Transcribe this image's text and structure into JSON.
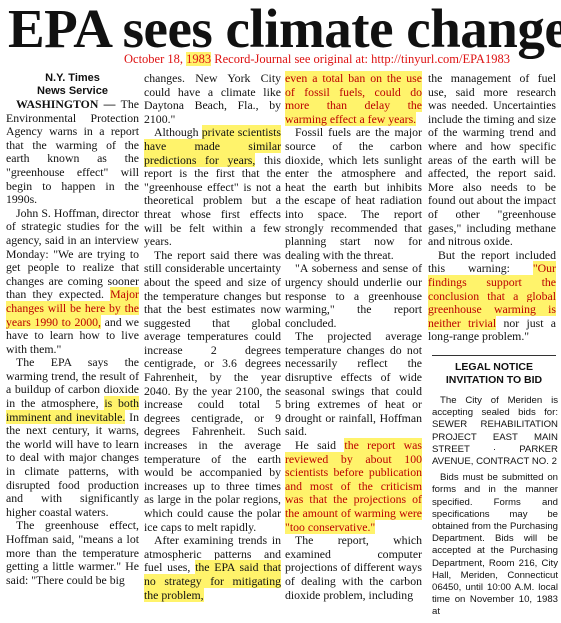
{
  "headline": "EPA sees climate change",
  "caption": {
    "date_prefix": "October 18, ",
    "year": "1983",
    "source": "  Record-Journal    see original at: http://tinyurl.com/EPA1983"
  },
  "byline": [
    "N.Y. Times",
    "News Service"
  ],
  "col1": {
    "dateline": "WASHINGTON — ",
    "p1": "The Environmental Protection Agency warns in a report that the warming of the earth known as the \"greenhouse effect\" will begin to happen in the 1990s.",
    "p2a": "John S. Hoffman, director of strategic studies for the agency, said in an interview Monday: \"We are trying to get people to realize that changes are coming sooner than they expected. ",
    "p2_hl": "Major changes will be here by the years 1990 to 2000,",
    "p2b": " and we have to learn how to live with them.\"",
    "p3a": "The EPA says the warming trend, the result of a buildup of carbon dioxide in the atmosphere, ",
    "p3_hl": "is both imminent and inevitable.",
    "p3b": " In the next century, it warns, the world will have to learn to deal with major changes in climate patterns, with disrupted food production and with significantly higher coastal waters.",
    "p4": "The greenhouse effect, Hoffman said, \"means a lot more than the temperature getting a little warmer.\" He said: \"There could be big"
  },
  "col2": {
    "p1": "changes. New York City could have a climate like Daytona Beach, Fla., by 2100.\"",
    "p2a": "Although ",
    "p2_hl": "private scientists have made similar predictions for years,",
    "p2b": " this report is the first that the \"greenhouse effect\" is not a theoretical problem but a threat whose first effects will be felt within a few years.",
    "p3": "The report said there was still considerable uncertainty about the speed and size of the temperature changes but that the best estimates now suggested that global average temperatures could increase 2 degrees centigrade, or 3.6 degrees Fahrenheit, by the year 2040. By the year 2100, the increase could total 5 degrees centigrade, or 9 degrees Fahrenheit. Such increases in the average temperature of the earth would be accompanied by increases up to three times as large in the polar regions, which could cause the polar ice caps to melt rapidly.",
    "p4a": "After examining trends in atmospheric patterns and fuel uses, ",
    "p4_hl": "the EPA said that no strategy for mitigating the problem,"
  },
  "col3": {
    "p1_hl": "even a total ban on the use of fossil fuels, could do more than delay the warming effect a few years.",
    "p2": "Fossil fuels are the major source of the carbon dioxide, which lets sunlight enter the atmosphere and heat the earth but inhibits the escape of heat radiation into space. The report strongly recommended that planning start now for dealing with the threat.",
    "p3": "\"A soberness and sense of urgency should underlie our response to a greenhouse warming,\" the report concluded.",
    "p4": "The projected average temperature changes do not necessarily reflect the disruptive effects of wide seasonal swings that could bring extremes of heat or drought or rainfall, Hoffman said.",
    "p5a": "He said ",
    "p5_hl": "the report was reviewed by about 100 scientists before publication and most of the criticism was that the projections of the amount of warming were \"too conservative.\"",
    "p6": "The report, which examined computer projections of different ways of dealing with the carbon dioxide problem, including"
  },
  "col4": {
    "p1": "the management of fuel use, said more research was needed. Uncertainties include the timing and size of the warming trend and where and how specific areas of the earth will be affected, the report said. More also needs to be found out about the impact of other \"greenhouse gases,\" including methane and nitrous oxide.",
    "p2a": "But the report included this warning: ",
    "p2_hl": "\"Our findings support the conclusion that a global greenhouse warming is neither trivial",
    "p2b": " nor just a long-range problem.\""
  },
  "legal": {
    "heading1": "LEGAL NOTICE",
    "heading2": "INVITATION TO BID",
    "p1": "The City of Meriden is accepting sealed bids for: SEWER REHABILITATION PROJECT EAST MAIN STREET · PARKER AVENUE, CONTRACT NO. 2",
    "p2": "Bids must be submitted on forms and in the manner specified. Forms and specifications may be obtained from the Purchasing Department. Bids will be accepted at the Purchasing Department, Room 216, City Hall, Meriden, Connecticut 06450, until 10:00 A.M. local time on November 10, 1983 at"
  },
  "colors": {
    "highlight": "#fff36b",
    "caption_red": "#dd1111",
    "highlight_text": "#b00000"
  }
}
